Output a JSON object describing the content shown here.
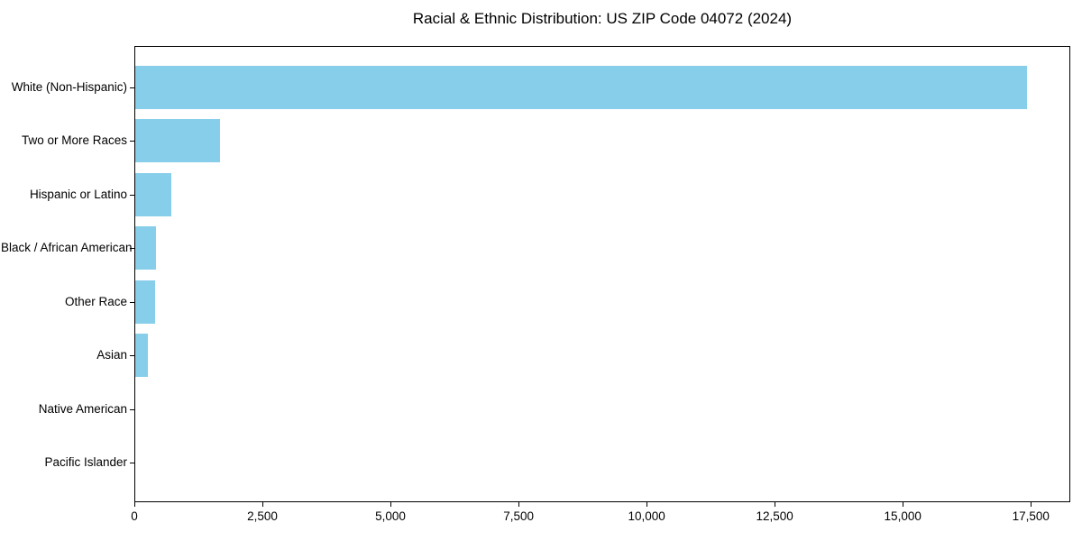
{
  "chart_data": {
    "type": "bar",
    "orientation": "horizontal",
    "title": "Racial & Ethnic Distribution: US ZIP Code 04072 (2024)",
    "categories": [
      "White (Non-Hispanic)",
      "Two or More Races",
      "Hispanic or Latino",
      "Black / African American",
      "Other Race",
      "Asian",
      "Native American",
      "Pacific Islander"
    ],
    "values": [
      17400,
      1650,
      710,
      400,
      390,
      250,
      0,
      0
    ],
    "xlabel": "",
    "ylabel": "",
    "xlim": [
      0,
      18270
    ],
    "x_ticks": [
      0,
      2500,
      5000,
      7500,
      10000,
      12500,
      15000,
      17500
    ],
    "x_tick_labels": [
      "0",
      "2,500",
      "5,000",
      "7,500",
      "10,000",
      "12,500",
      "15,000",
      "17,500"
    ],
    "bar_color": "#87CEEB",
    "axis_color": "#000000",
    "background_color": "#ffffff",
    "grid": false,
    "legend": null
  }
}
